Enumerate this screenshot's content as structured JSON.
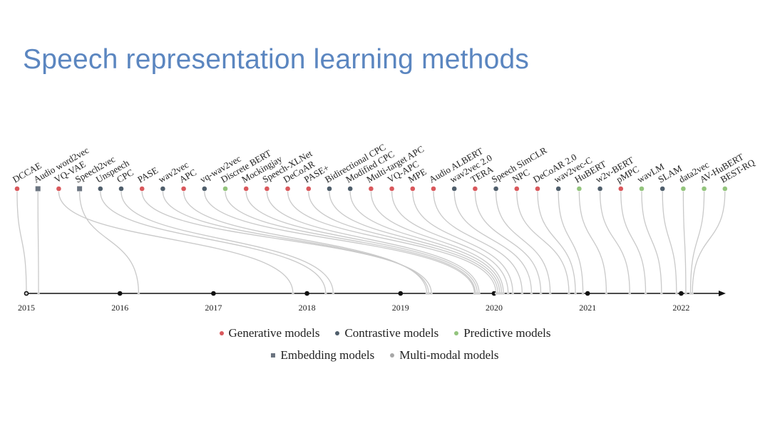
{
  "title": "Speech representation learning methods",
  "category_colors": {
    "generative": "#d9585c",
    "contrastive": "#4f5e6b",
    "predictive": "#93c47d",
    "embedding": "#6b7480",
    "multimodal": "#a7a7a7"
  },
  "legend": {
    "row1": [
      {
        "label": "Generative models",
        "category": "generative"
      },
      {
        "label": "Contrastive models",
        "category": "contrastive"
      },
      {
        "label": "Predictive models",
        "category": "predictive"
      }
    ],
    "row2": [
      {
        "label": "Embedding models",
        "category": "embedding"
      },
      {
        "label": "Multi-modal models",
        "category": "multimodal"
      }
    ]
  },
  "timeline": {
    "years": [
      "2015",
      "2016",
      "2017",
      "2018",
      "2019",
      "2020",
      "2021",
      "2022"
    ]
  },
  "methods": [
    {
      "name": "DCCAE",
      "category": "generative",
      "date": 2015.0
    },
    {
      "name": "Audio word2vec",
      "category": "embedding",
      "date": 2015.13
    },
    {
      "name": "VQ-VAE",
      "category": "generative",
      "date": 2017.85
    },
    {
      "name": "Speech2vec",
      "category": "embedding",
      "date": 2016.2
    },
    {
      "name": "Unspeech",
      "category": "contrastive",
      "date": 2018.2
    },
    {
      "name": "CPC",
      "category": "contrastive",
      "date": 2018.28
    },
    {
      "name": "PASE",
      "category": "generative",
      "date": 2019.33
    },
    {
      "name": "wav2vec",
      "category": "contrastive",
      "date": 2019.3
    },
    {
      "name": "APC",
      "category": "generative",
      "date": 2019.28
    },
    {
      "name": "vq-wav2vec",
      "category": "contrastive",
      "date": 2019.79
    },
    {
      "name": "Discrete BERT",
      "category": "predictive",
      "date": 2019.8
    },
    {
      "name": "Mockingjay",
      "category": "generative",
      "date": 2019.82
    },
    {
      "name": "Speech-XLNet",
      "category": "generative",
      "date": 2019.84
    },
    {
      "name": "DeCoAR",
      "category": "generative",
      "date": 2020.02
    },
    {
      "name": "PASE+",
      "category": "generative",
      "date": 2020.04
    },
    {
      "name": "Bidirectional CPC",
      "category": "contrastive",
      "date": 2020.06
    },
    {
      "name": "Modified CPC",
      "category": "contrastive",
      "date": 2020.08
    },
    {
      "name": "Multi-target APC",
      "category": "generative",
      "date": 2020.1
    },
    {
      "name": "VQ-APC",
      "category": "generative",
      "date": 2020.15
    },
    {
      "name": "MPE",
      "category": "generative",
      "date": 2020.2
    },
    {
      "name": "Audio ALBERT",
      "category": "generative",
      "date": 2020.3
    },
    {
      "name": "wav2vec 2.0",
      "category": "contrastive",
      "date": 2020.4
    },
    {
      "name": "TERA",
      "category": "generative",
      "date": 2020.5
    },
    {
      "name": "Speech SimCLR",
      "category": "contrastive",
      "date": 2020.6
    },
    {
      "name": "NPC",
      "category": "generative",
      "date": 2020.8
    },
    {
      "name": "DeCoAR 2.0",
      "category": "generative",
      "date": 2020.87
    },
    {
      "name": "wav2vec-C",
      "category": "contrastive",
      "date": 2020.95
    },
    {
      "name": "HuBERT",
      "category": "predictive",
      "date": 2021.2
    },
    {
      "name": "w2v-BERT",
      "category": "contrastive",
      "date": 2021.45
    },
    {
      "name": "pMPC",
      "category": "generative",
      "date": 2021.62
    },
    {
      "name": "wavLM",
      "category": "predictive",
      "date": 2021.79
    },
    {
      "name": "SLAM",
      "category": "contrastive",
      "date": 2021.95
    },
    {
      "name": "data2vec",
      "category": "predictive",
      "date": 2022.05
    },
    {
      "name": "AV-HuBERT",
      "category": "predictive",
      "date": 2022.1
    },
    {
      "name": "BEST-RQ",
      "category": "predictive",
      "date": 2022.12
    }
  ]
}
